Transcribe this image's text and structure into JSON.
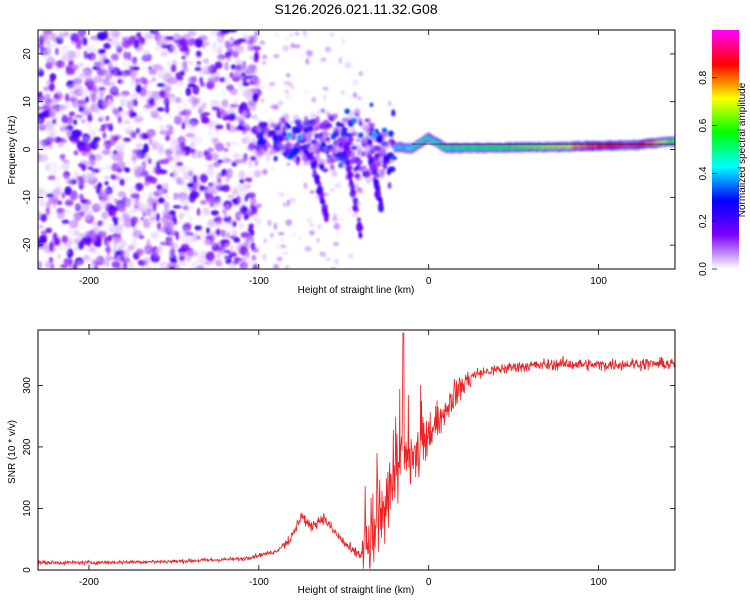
{
  "title": "S126.2026.021.11.32.G08",
  "chart_data": [
    {
      "type": "heatmap",
      "name": "spectrogram",
      "xlabel": "Height of straight line (km)",
      "ylabel": "Frequency (Hz)",
      "xlim": [
        -230,
        145
      ],
      "ylim": [
        -25,
        25
      ],
      "xticks": [
        -200,
        -100,
        0,
        100
      ],
      "yticks": [
        -20,
        -10,
        0,
        10,
        20
      ],
      "colorbar": {
        "label": "Normalized spectral amplitude",
        "range": [
          0,
          1
        ],
        "ticks": [
          "0.0",
          "0.2",
          "0.4",
          "0.6",
          "0.8"
        ],
        "colors": [
          "#ffffff",
          "#7b00ff",
          "#0000ff",
          "#00ffff",
          "#00ff00",
          "#ffff00",
          "#ff0000",
          "#ff00ff"
        ]
      },
      "ridge": {
        "description": "Strong tone near 0 Hz from about -20 km to 145 km",
        "x": [
          -20,
          -10,
          0,
          10,
          40,
          80,
          100,
          120,
          145
        ],
        "freq": [
          0.5,
          0.2,
          2.5,
          0.3,
          0.4,
          0.6,
          0.8,
          0.9,
          1.8
        ],
        "amplitude": [
          0.4,
          0.45,
          0.5,
          0.5,
          0.55,
          0.7,
          0.85,
          0.95,
          0.6
        ]
      }
    },
    {
      "type": "line",
      "name": "snr",
      "xlabel": "Height of straight line (km)",
      "ylabel": "SNR (10 * v/v)",
      "xlim": [
        -230,
        145
      ],
      "ylim": [
        0,
        390
      ],
      "xticks": [
        -200,
        -100,
        0,
        100
      ],
      "yticks": [
        0,
        100,
        200,
        300
      ],
      "color": "#ee2222",
      "series": [
        {
          "name": "SNR",
          "x": [
            -230,
            -200,
            -150,
            -110,
            -90,
            -80,
            -75,
            -70,
            -62,
            -55,
            -45,
            -40,
            -35,
            -30,
            -25,
            -20,
            -15,
            -10,
            -5,
            0,
            5,
            10,
            15,
            20,
            25,
            30,
            40,
            50,
            60,
            80,
            100,
            120,
            145
          ],
          "y": [
            12,
            12,
            14,
            18,
            30,
            55,
            90,
            70,
            85,
            60,
            30,
            25,
            35,
            70,
            110,
            150,
            190,
            180,
            190,
            210,
            240,
            260,
            285,
            300,
            315,
            320,
            325,
            330,
            332,
            335,
            333,
            335,
            335
          ],
          "spike": {
            "x": -15,
            "y": 385
          }
        }
      ]
    }
  ]
}
